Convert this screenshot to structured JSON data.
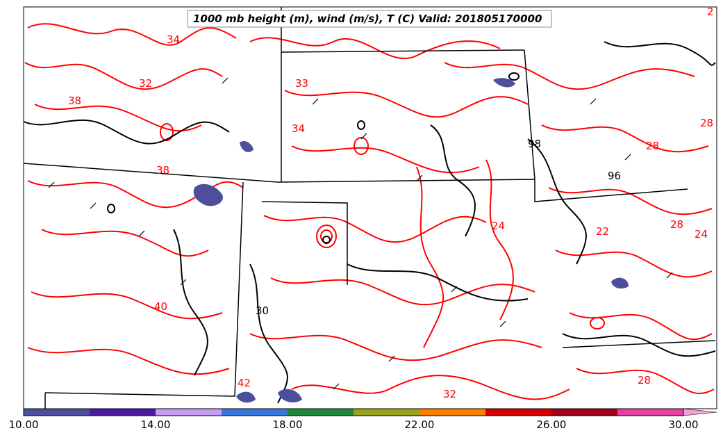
{
  "title": "1000 mb height (m), wind (m/s), T (C) Valid: 201805170000",
  "temperature_labels": [
    "34",
    "32",
    "38",
    "33",
    "34",
    "28",
    "28",
    "24",
    "22",
    "24",
    "40",
    "38",
    "42",
    "32",
    "28",
    "28",
    "2"
  ],
  "height_labels": [
    "96",
    "30",
    "98"
  ],
  "colorbar": {
    "colors": [
      "#4b4f9e",
      "#4a1aa0",
      "#c89cf3",
      "#3577dc",
      "#1f8a3a",
      "#9ca21e",
      "#ff7f00",
      "#d40000",
      "#a30020",
      "#e640a0"
    ],
    "extend_color": "#f0a0d8",
    "tick_labels": [
      "10.00",
      "14.00",
      "18.00",
      "22.00",
      "26.00",
      "30.00"
    ]
  },
  "line_colors": {
    "temperature": "#ff0000",
    "height": "#000000",
    "wind_speed_fill": "#4b4f9e"
  }
}
